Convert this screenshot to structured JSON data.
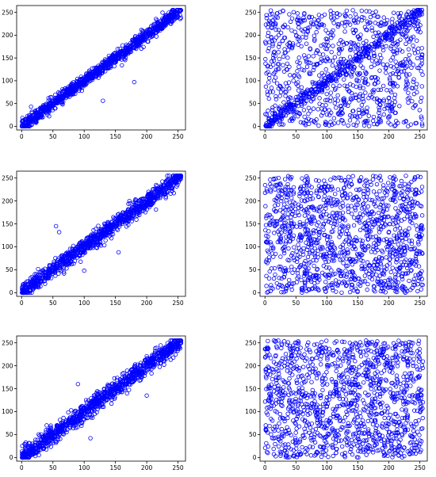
{
  "chart_data": [
    {
      "type": "scatter",
      "panel": "row1-left",
      "generator": "correlated",
      "spread": 7,
      "n_points": 1100,
      "seed": 11,
      "marker": "hollow-circle",
      "color": "#0000ff",
      "xlim": [
        -8,
        262
      ],
      "ylim": [
        -8,
        265
      ],
      "xticks": [
        0,
        50,
        100,
        150,
        200,
        250
      ],
      "yticks": [
        0,
        50,
        100,
        150,
        200,
        250
      ],
      "xtick_labels": [
        "0",
        "50",
        "100",
        "150",
        "200",
        "250"
      ],
      "ytick_labels": [
        "0",
        "50",
        "100",
        "150",
        "200",
        "250"
      ],
      "outliers": [
        [
          15,
          43
        ],
        [
          180,
          97
        ],
        [
          130,
          56
        ]
      ],
      "grid": false,
      "legend": "none"
    },
    {
      "type": "scatter",
      "panel": "row1-right",
      "generator": "mixed",
      "diag_fraction": 0.28,
      "spread": 8,
      "n_points": 1300,
      "seed": 23,
      "marker": "hollow-circle",
      "color": "#0000ff",
      "xlim": [
        -8,
        262
      ],
      "ylim": [
        -8,
        265
      ],
      "xticks": [
        0,
        50,
        100,
        150,
        200,
        250
      ],
      "yticks": [
        0,
        50,
        100,
        150,
        200,
        250
      ],
      "xtick_labels": [
        "0",
        "50",
        "100",
        "150",
        "200",
        "250"
      ],
      "ytick_labels": [
        "0",
        "50",
        "100",
        "150",
        "200",
        "250"
      ],
      "grid": false,
      "legend": "none"
    },
    {
      "type": "scatter",
      "panel": "row2-left",
      "generator": "correlated",
      "spread": 9,
      "n_points": 1100,
      "seed": 37,
      "marker": "hollow-circle",
      "color": "#0000ff",
      "xlim": [
        -8,
        262
      ],
      "ylim": [
        -8,
        265
      ],
      "xticks": [
        0,
        50,
        100,
        150,
        200,
        250
      ],
      "yticks": [
        0,
        50,
        100,
        150,
        200,
        250
      ],
      "xtick_labels": [
        "0",
        "50",
        "100",
        "150",
        "200",
        "250"
      ],
      "ytick_labels": [
        "0",
        "50",
        "100",
        "150",
        "200",
        "250"
      ],
      "outliers": [
        [
          55,
          145
        ],
        [
          60,
          132
        ],
        [
          100,
          48
        ],
        [
          155,
          88
        ]
      ],
      "grid": false,
      "legend": "none"
    },
    {
      "type": "scatter",
      "panel": "row2-right",
      "generator": "uniform",
      "n_points": 1300,
      "seed": 41,
      "marker": "hollow-circle",
      "color": "#0000ff",
      "xlim": [
        -8,
        262
      ],
      "ylim": [
        -8,
        265
      ],
      "xticks": [
        0,
        50,
        100,
        150,
        200,
        250
      ],
      "yticks": [
        0,
        50,
        100,
        150,
        200,
        250
      ],
      "xtick_labels": [
        "0",
        "50",
        "100",
        "150",
        "200",
        "250"
      ],
      "ytick_labels": [
        "0",
        "50",
        "100",
        "150",
        "200",
        "250"
      ],
      "grid": false,
      "legend": "none"
    },
    {
      "type": "scatter",
      "panel": "row3-left",
      "generator": "correlated",
      "spread": 10,
      "n_points": 1100,
      "seed": 53,
      "marker": "hollow-circle",
      "color": "#0000ff",
      "xlim": [
        -8,
        262
      ],
      "ylim": [
        -8,
        265
      ],
      "xticks": [
        0,
        50,
        100,
        150,
        200,
        250
      ],
      "yticks": [
        0,
        50,
        100,
        150,
        200,
        250
      ],
      "xtick_labels": [
        "0",
        "50",
        "100",
        "150",
        "200",
        "250"
      ],
      "ytick_labels": [
        "0",
        "50",
        "100",
        "150",
        "200",
        "250"
      ],
      "outliers": [
        [
          90,
          160
        ],
        [
          200,
          135
        ],
        [
          110,
          42
        ],
        [
          40,
          70
        ]
      ],
      "grid": false,
      "legend": "none"
    },
    {
      "type": "scatter",
      "panel": "row3-right",
      "generator": "uniform",
      "n_points": 1300,
      "seed": 67,
      "marker": "hollow-circle",
      "color": "#0000ff",
      "xlim": [
        -8,
        262
      ],
      "ylim": [
        -8,
        265
      ],
      "xticks": [
        0,
        50,
        100,
        150,
        200,
        250
      ],
      "yticks": [
        0,
        50,
        100,
        150,
        200,
        250
      ],
      "xtick_labels": [
        "0",
        "50",
        "100",
        "150",
        "200",
        "250"
      ],
      "ytick_labels": [
        "0",
        "50",
        "100",
        "150",
        "200",
        "250"
      ],
      "grid": false,
      "legend": "none"
    }
  ]
}
